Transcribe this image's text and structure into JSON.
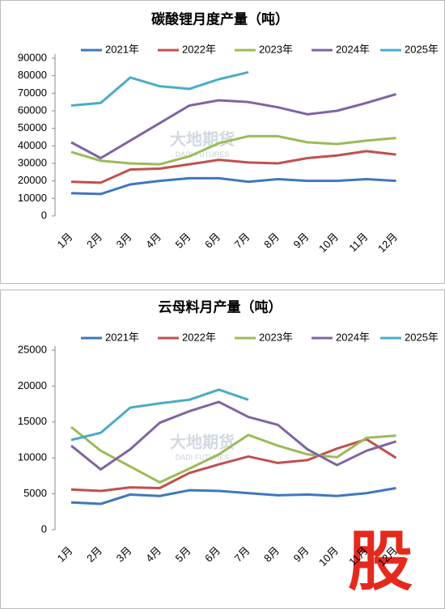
{
  "watermark": "大地期货",
  "watermark_sub": "DADI FUTURES",
  "badge": "股",
  "chart_data": [
    {
      "type": "line",
      "title": "碳酸锂月度产量（吨）",
      "categories": [
        "1月",
        "2月",
        "3月",
        "4月",
        "5月",
        "6月",
        "7月",
        "8月",
        "9月",
        "10月",
        "11月",
        "12月"
      ],
      "ylim": [
        0,
        90000
      ],
      "yticks": [
        0,
        10000,
        20000,
        30000,
        40000,
        50000,
        60000,
        70000,
        80000,
        90000
      ],
      "series": [
        {
          "name": "2021年",
          "color": "#3f77bd",
          "values": [
            13000,
            12500,
            18000,
            20000,
            21500,
            21500,
            19500,
            21000,
            20000,
            20000,
            21000,
            20000
          ]
        },
        {
          "name": "2022年",
          "color": "#c0504d",
          "values": [
            19500,
            19000,
            26500,
            27000,
            29500,
            32000,
            30500,
            30000,
            33000,
            34500,
            37000,
            35000
          ]
        },
        {
          "name": "2023年",
          "color": "#9bbb59",
          "values": [
            36500,
            31500,
            30000,
            29500,
            34000,
            41500,
            45500,
            45500,
            42000,
            41000,
            43000,
            44500
          ]
        },
        {
          "name": "2024年",
          "color": "#8064a2",
          "values": [
            42000,
            33000,
            43000,
            53000,
            63000,
            66000,
            65000,
            62000,
            58000,
            60000,
            64500,
            69500
          ]
        },
        {
          "name": "2025年",
          "color": "#4bacc6",
          "values": [
            63000,
            64500,
            79000,
            74000,
            72500,
            78000,
            82000,
            null,
            null,
            null,
            null,
            null
          ]
        }
      ]
    },
    {
      "type": "line",
      "title": "云母料月产量（吨）",
      "categories": [
        "1月",
        "2月",
        "3月",
        "4月",
        "5月",
        "6月",
        "7月",
        "8月",
        "9月",
        "10月",
        "11月",
        "12月"
      ],
      "ylim": [
        0,
        25000
      ],
      "yticks": [
        0,
        5000,
        10000,
        15000,
        20000,
        25000
      ],
      "series": [
        {
          "name": "2021年",
          "color": "#3f77bd",
          "values": [
            3800,
            3600,
            4900,
            4700,
            5500,
            5400,
            5100,
            4800,
            4900,
            4700,
            5100,
            5800
          ]
        },
        {
          "name": "2022年",
          "color": "#c0504d",
          "values": [
            5600,
            5400,
            5900,
            5800,
            7900,
            9100,
            10200,
            9300,
            9700,
            11300,
            12600,
            10000
          ]
        },
        {
          "name": "2023年",
          "color": "#9bbb59",
          "values": [
            14300,
            11000,
            8800,
            6600,
            8500,
            10500,
            13200,
            11700,
            10500,
            10100,
            12800,
            13100
          ]
        },
        {
          "name": "2024年",
          "color": "#8064a2",
          "values": [
            11700,
            8400,
            11200,
            14900,
            16500,
            17800,
            15700,
            14600,
            11200,
            9000,
            11000,
            12300
          ]
        },
        {
          "name": "2025年",
          "color": "#4bacc6",
          "values": [
            12500,
            13500,
            17000,
            17600,
            18100,
            19500,
            18100,
            null,
            null,
            null,
            null,
            null
          ]
        }
      ]
    }
  ]
}
